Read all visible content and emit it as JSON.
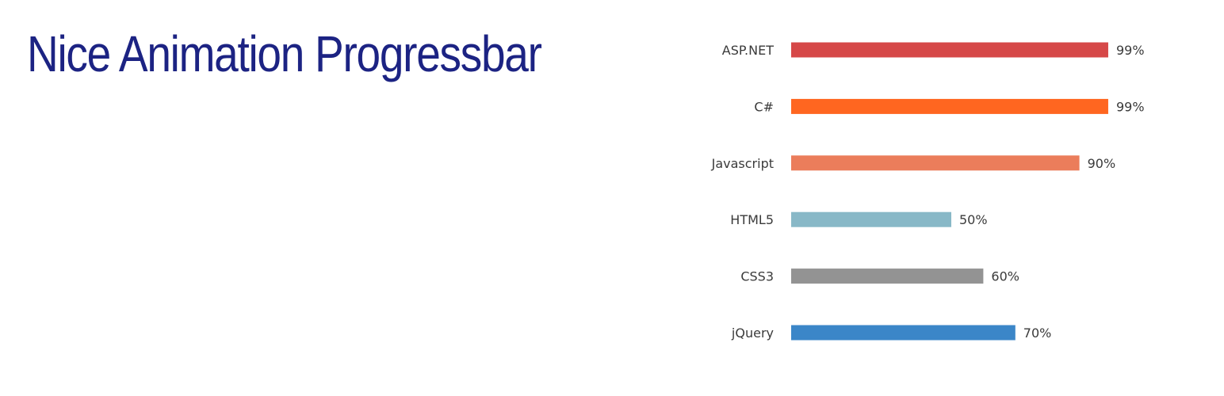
{
  "header": {
    "title": "Nice Animation Progressbar"
  },
  "chart_data": {
    "type": "bar",
    "orientation": "horizontal",
    "categories": [
      "ASP.NET",
      "C#",
      "Javascript",
      "HTML5",
      "CSS3",
      "jQuery"
    ],
    "values": [
      99,
      99,
      90,
      50,
      60,
      70
    ],
    "value_labels": [
      "99%",
      "99%",
      "90%",
      "50%",
      "60%",
      "70%"
    ],
    "colors": [
      "#d64848",
      "#ff6620",
      "#eb7d5b",
      "#88b8c7",
      "#939393",
      "#3b86c8"
    ],
    "xlim": [
      0,
      100
    ],
    "grid": false,
    "legend": "none"
  }
}
